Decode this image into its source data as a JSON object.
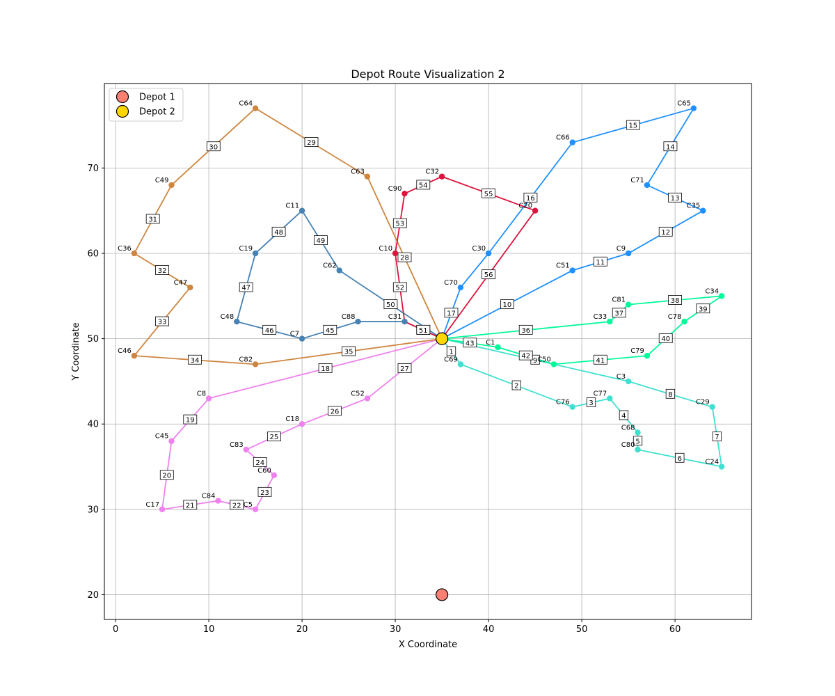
{
  "chart_data": {
    "type": "line",
    "title": "Depot Route Visualization 2",
    "xlabel": "X Coordinate",
    "ylabel": "Y Coordinate",
    "xlim": [
      -1.2,
      68.2
    ],
    "ylim": [
      17.1,
      79.9
    ],
    "xticks": [
      0,
      10,
      20,
      30,
      40,
      50,
      60
    ],
    "yticks": [
      20,
      30,
      40,
      50,
      60,
      70
    ],
    "grid": true,
    "legend_placement": "top-left",
    "depots": [
      {
        "name": "Depot 1",
        "x": 35,
        "y": 20,
        "color": "#fa8072"
      },
      {
        "name": "Depot 2",
        "x": 35,
        "y": 50,
        "color": "#ffd700"
      }
    ],
    "routes": [
      {
        "color": "#40e0d0",
        "stops": [
          {
            "label": "C69",
            "x": 37,
            "y": 47
          },
          {
            "label": "C76",
            "x": 49,
            "y": 42
          },
          {
            "label": "C77",
            "x": 53,
            "y": 43
          },
          {
            "label": "C68",
            "x": 56,
            "y": 39
          },
          {
            "label": "C80",
            "x": 56,
            "y": 37
          },
          {
            "label": "C24",
            "x": 65,
            "y": 35
          },
          {
            "label": "C29",
            "x": 64,
            "y": 42
          },
          {
            "label": "C3",
            "x": 55,
            "y": 45
          }
        ],
        "seq": [
          "1",
          "2",
          "3",
          "4",
          "5",
          "6",
          "7",
          "8",
          "9"
        ]
      },
      {
        "color": "#1e90ff",
        "stops": [
          {
            "label": "C51",
            "x": 49,
            "y": 58
          },
          {
            "label": "C9",
            "x": 55,
            "y": 60
          },
          {
            "label": "C35",
            "x": 63,
            "y": 65
          },
          {
            "label": "C71",
            "x": 57,
            "y": 68
          },
          {
            "label": "C65",
            "x": 62,
            "y": 77
          },
          {
            "label": "C66",
            "x": 49,
            "y": 73
          },
          {
            "label": "C30",
            "x": 40,
            "y": 60
          },
          {
            "label": "C70",
            "x": 37,
            "y": 56
          }
        ],
        "seq": [
          "10",
          "11",
          "12",
          "13",
          "14",
          "15",
          "16",
          "",
          "17"
        ]
      },
      {
        "color": "#ee82ee",
        "stops": [
          {
            "label": "C8",
            "x": 10,
            "y": 43
          },
          {
            "label": "C45",
            "x": 6,
            "y": 38
          },
          {
            "label": "C17",
            "x": 5,
            "y": 30
          },
          {
            "label": "C84",
            "x": 11,
            "y": 31
          },
          {
            "label": "C5",
            "x": 15,
            "y": 30
          },
          {
            "label": "C60",
            "x": 17,
            "y": 34
          },
          {
            "label": "C83",
            "x": 14,
            "y": 37
          },
          {
            "label": "C18",
            "x": 20,
            "y": 40
          },
          {
            "label": "C52",
            "x": 27,
            "y": 43
          }
        ],
        "seq": [
          "18",
          "19",
          "20",
          "21",
          "22",
          "23",
          "24",
          "25",
          "26",
          "27"
        ]
      },
      {
        "color": "#cd853f",
        "stops": [
          {
            "label": "C63",
            "x": 27,
            "y": 69
          },
          {
            "label": "C64",
            "x": 15,
            "y": 77
          },
          {
            "label": "C49",
            "x": 6,
            "y": 68
          },
          {
            "label": "C36",
            "x": 2,
            "y": 60
          },
          {
            "label": "C47",
            "x": 8,
            "y": 56
          },
          {
            "label": "C46",
            "x": 2,
            "y": 48
          },
          {
            "label": "C82",
            "x": 15,
            "y": 47
          }
        ],
        "seq": [
          "28",
          "29",
          "30",
          "31",
          "32",
          "33",
          "34",
          "35"
        ]
      },
      {
        "color": "#00fa9a",
        "stops": [
          {
            "label": "C33",
            "x": 53,
            "y": 52
          },
          {
            "label": "C81",
            "x": 55,
            "y": 54
          },
          {
            "label": "C34",
            "x": 65,
            "y": 55
          },
          {
            "label": "C78",
            "x": 61,
            "y": 52
          },
          {
            "label": "C79",
            "x": 57,
            "y": 48
          },
          {
            "label": "C50",
            "x": 47,
            "y": 47
          },
          {
            "label": "C1",
            "x": 41,
            "y": 49
          }
        ],
        "seq": [
          "36",
          "37",
          "38",
          "39",
          "40",
          "41",
          "42",
          "43"
        ]
      },
      {
        "color": "#4682b4",
        "stops": [
          {
            "label": "C31",
            "x": 31,
            "y": 52
          },
          {
            "label": "C88",
            "x": 26,
            "y": 52
          },
          {
            "label": "C7",
            "x": 20,
            "y": 50
          },
          {
            "label": "C48",
            "x": 13,
            "y": 52
          },
          {
            "label": "C19",
            "x": 15,
            "y": 60
          },
          {
            "label": "C11",
            "x": 20,
            "y": 65
          },
          {
            "label": "C62",
            "x": 24,
            "y": 58
          }
        ],
        "seq": [
          "44",
          "",
          "45",
          "46",
          "47",
          "48",
          "49",
          "50"
        ]
      },
      {
        "color": "#dc143c",
        "stops": [
          {
            "label": "C10",
            "x": 30,
            "y": 60
          },
          {
            "label": "C90",
            "x": 31,
            "y": 67
          },
          {
            "label": "C32",
            "x": 35,
            "y": 69
          },
          {
            "label": "C20",
            "x": 45,
            "y": 65
          }
        ],
        "seq": [
          "51",
          "52",
          "53",
          "54",
          "55",
          "56",
          "57"
        ],
        "via": [
          {
            "x": 31,
            "y": 52
          },
          null,
          null,
          null,
          null,
          {
            "x": 40,
            "y": 60
          },
          null
        ]
      }
    ]
  }
}
